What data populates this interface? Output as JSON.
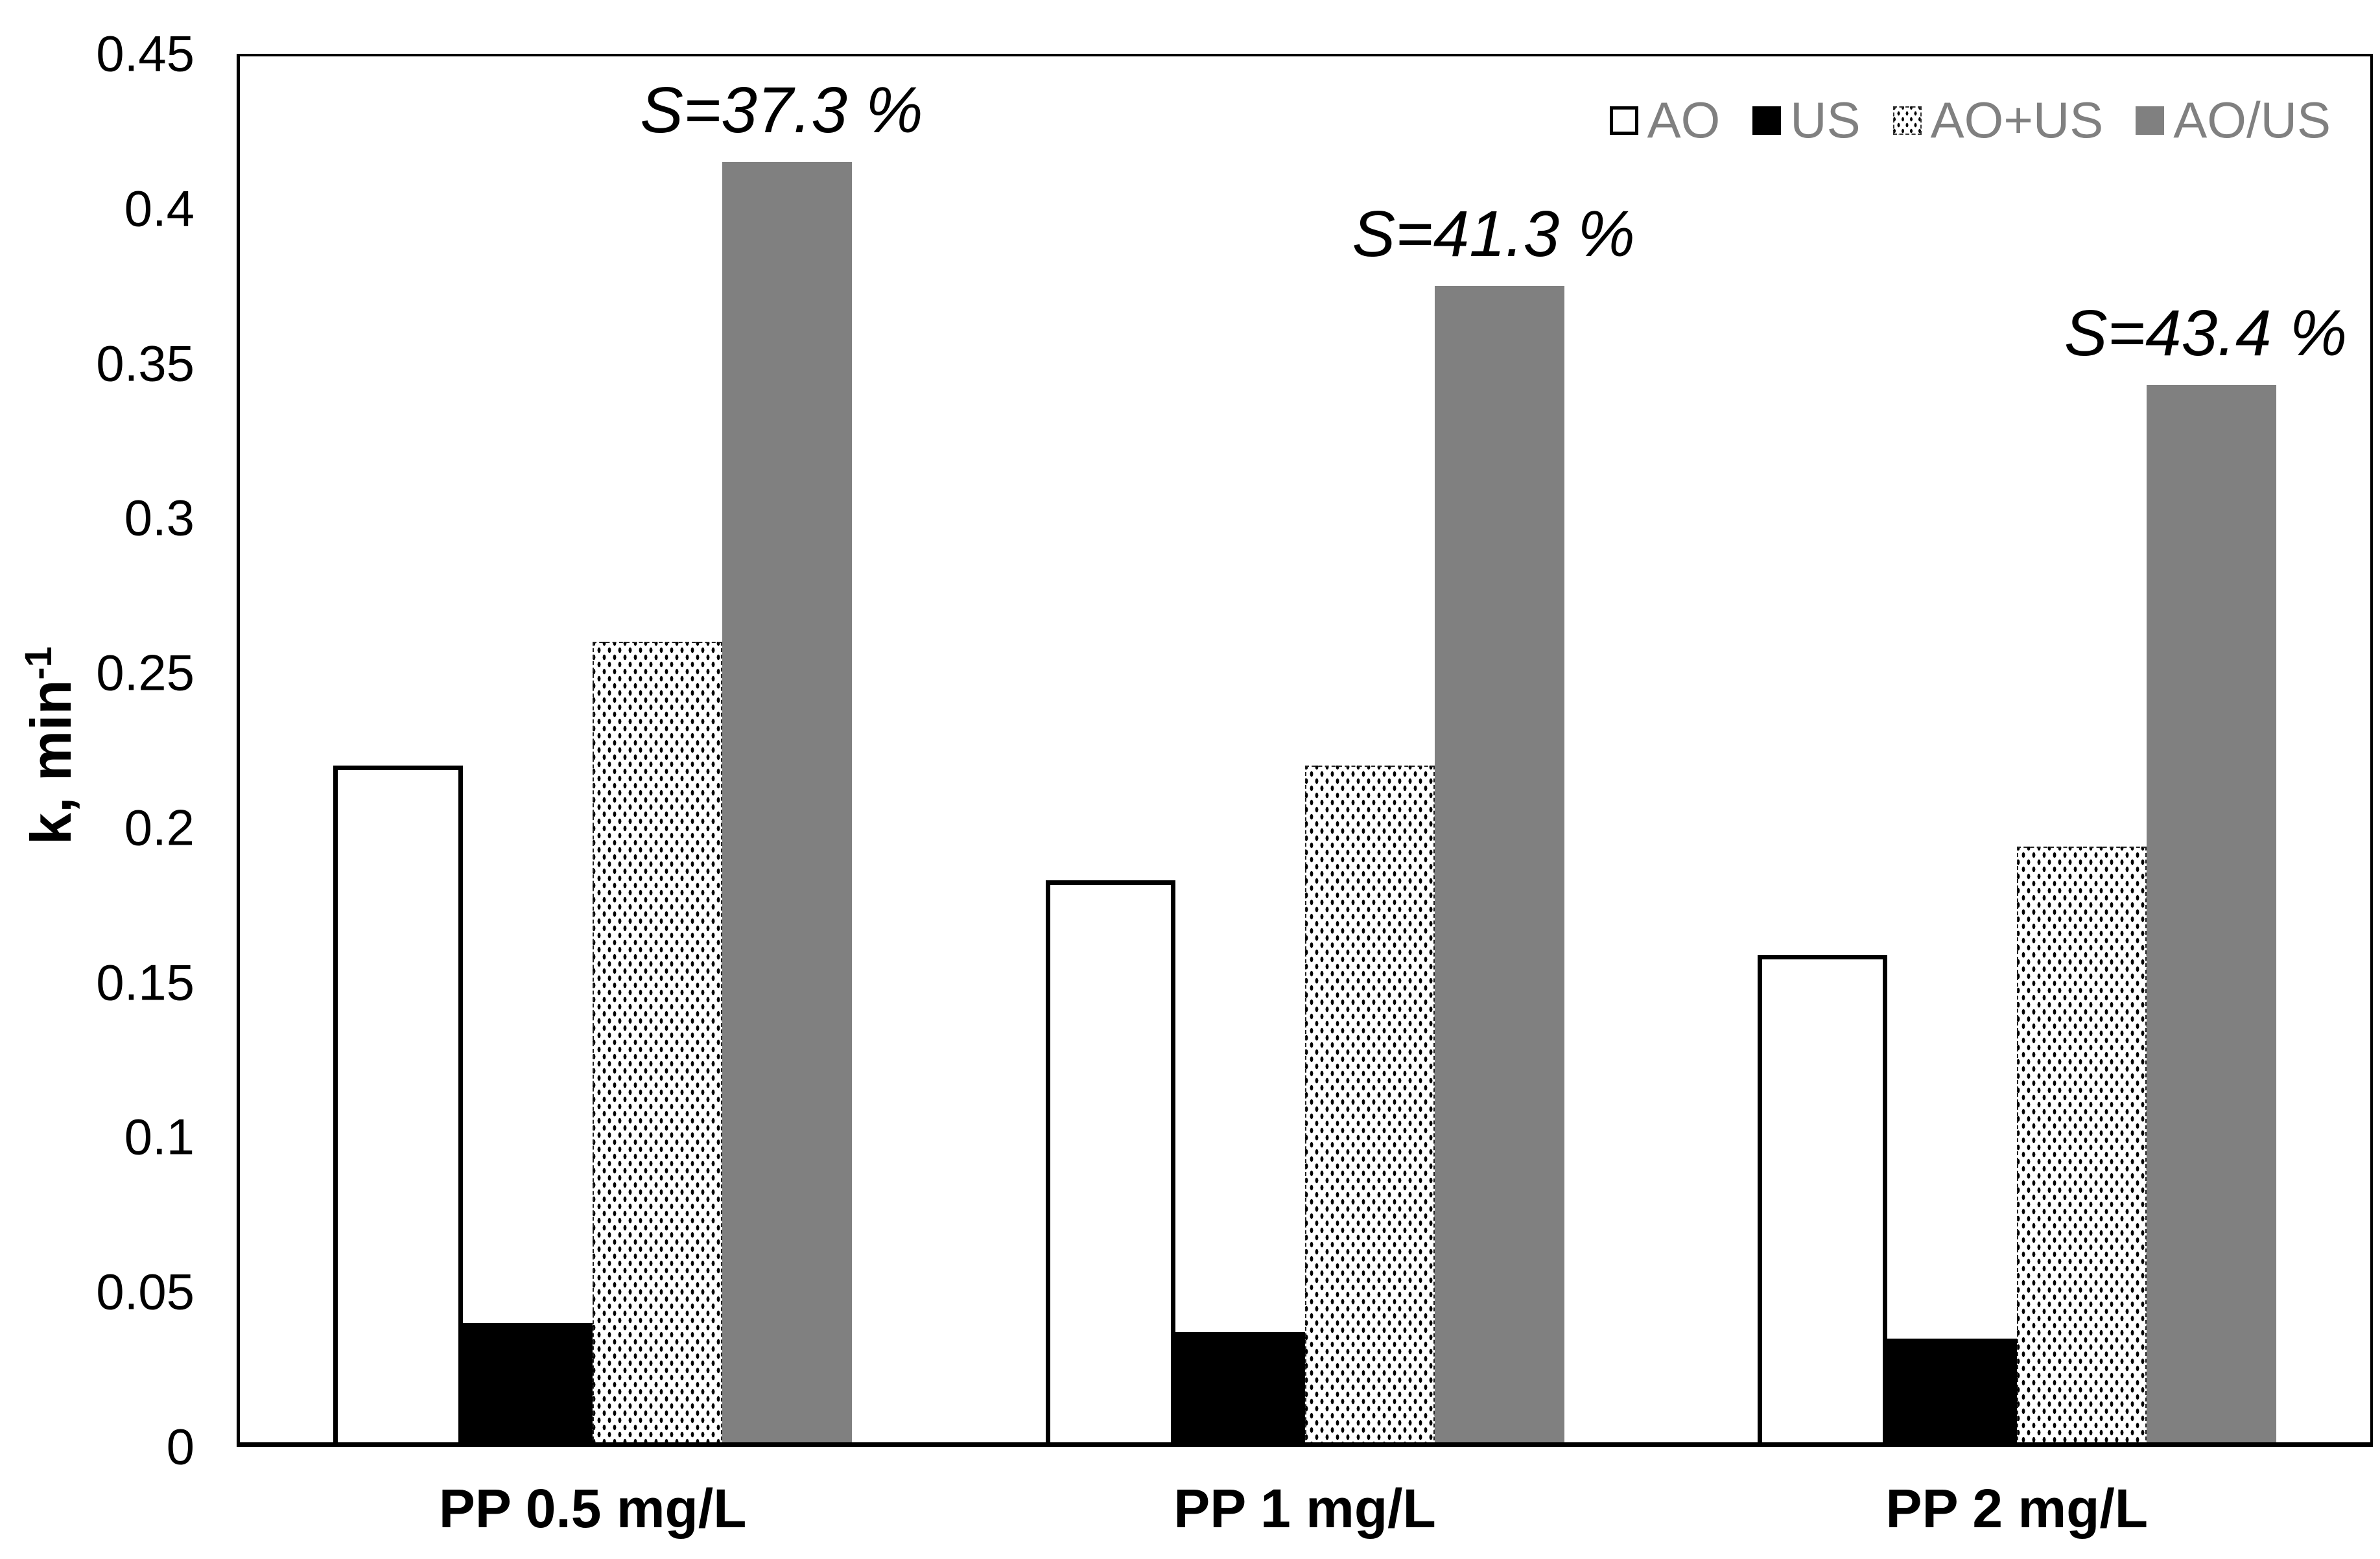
{
  "chart_data": {
    "type": "bar",
    "title": "",
    "ylabel_base": "k, min",
    "ylabel_sup": "-1",
    "ylim": [
      0,
      0.45
    ],
    "ytick_values": [
      0.45,
      0.4,
      0.35,
      0.3,
      0.25,
      0.2,
      0.15,
      0.1,
      0.05,
      0
    ],
    "ytick_labels": [
      "0.45",
      "0.4",
      "0.35",
      "0.3",
      "0.25",
      "0.2",
      "0.15",
      "0.1",
      "0.05",
      "0"
    ],
    "categories": [
      "PP 0.5 mg/L",
      "PP 1 mg/L",
      "PP 2 mg/L"
    ],
    "series": [
      {
        "name": "AO",
        "fill": "white-outline",
        "values": [
          0.22,
          0.183,
          0.159
        ]
      },
      {
        "name": "US",
        "fill": "black",
        "values": [
          0.04,
          0.037,
          0.035
        ]
      },
      {
        "name": "AO+US",
        "fill": "dotted-pattern",
        "values": [
          0.26,
          0.22,
          0.194
        ]
      },
      {
        "name": "AO/US",
        "fill": "gray",
        "values": [
          0.415,
          0.375,
          0.343
        ]
      }
    ],
    "annotations": [
      "S=37.3 %",
      "S=41.3 %",
      "S=43.4 %"
    ],
    "legend_position": "top-right",
    "grid": false,
    "colors": {
      "bar_white": "#ffffff",
      "bar_black": "#000000",
      "bar_gray": "#808080",
      "legend_text": "#808080",
      "axis": "#000000"
    }
  }
}
